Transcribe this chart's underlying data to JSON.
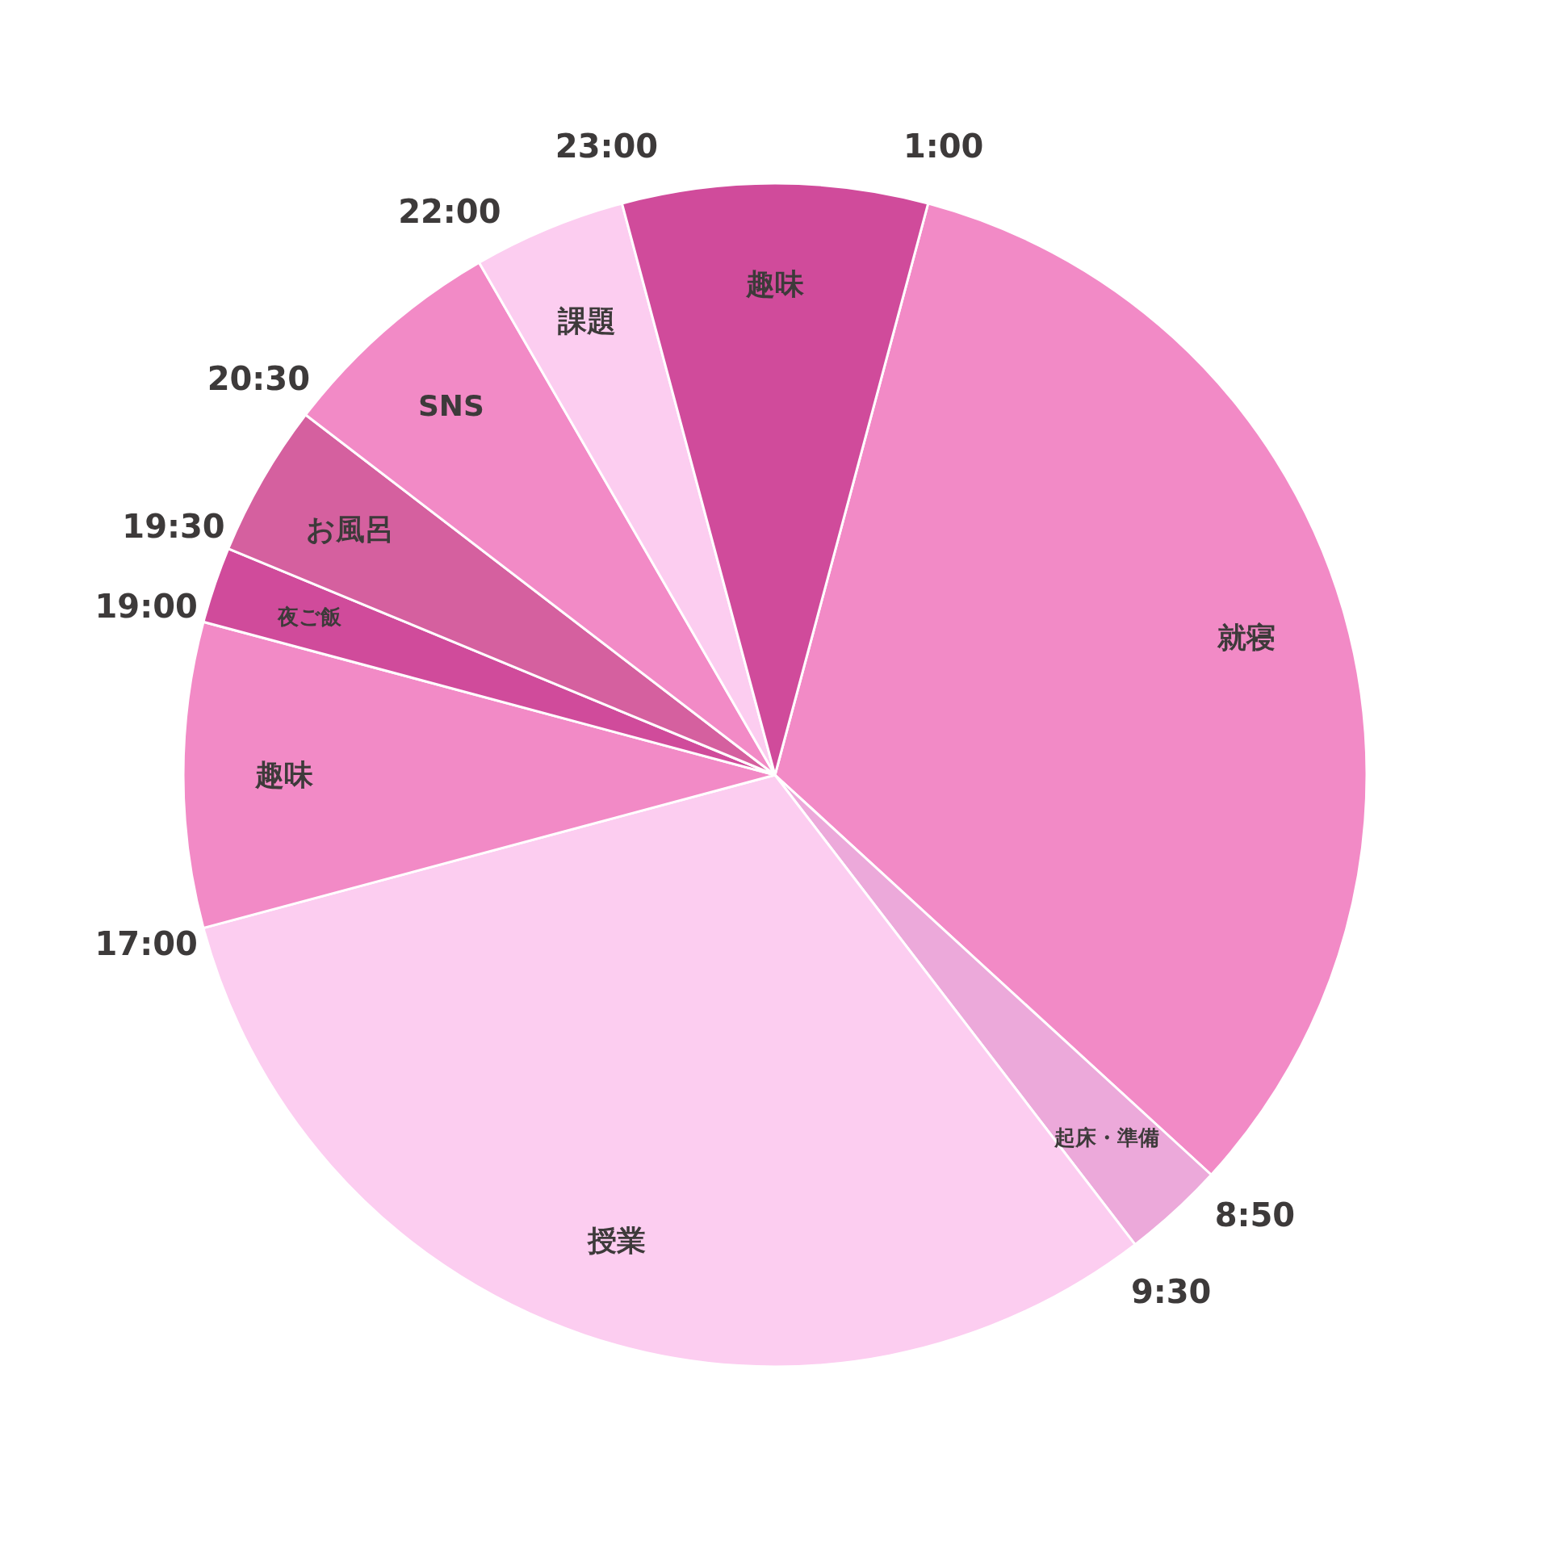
{
  "chart_data": {
    "type": "pie",
    "categories": [
      "就寝",
      "起床・準備",
      "授業",
      "趣味",
      "夜ご飯",
      "お風呂",
      "SNS",
      "課題",
      "趣味"
    ],
    "values": [
      32.64,
      2.78,
      31.25,
      8.33,
      2.08,
      4.17,
      6.25,
      4.17,
      8.33
    ],
    "colors": [
      "#f28ac6",
      "#eca9da",
      "#fccdf0",
      "#f28ac6",
      "#d04b9b",
      "#d5609f",
      "#f28ac6",
      "#fccdf0",
      "#d04b9b"
    ],
    "annotations": [
      "1:00",
      "8:50",
      "9:30",
      "17:00",
      "19:00",
      "19:30",
      "20:30",
      "22:00",
      "23:00"
    ],
    "legend": false
  }
}
